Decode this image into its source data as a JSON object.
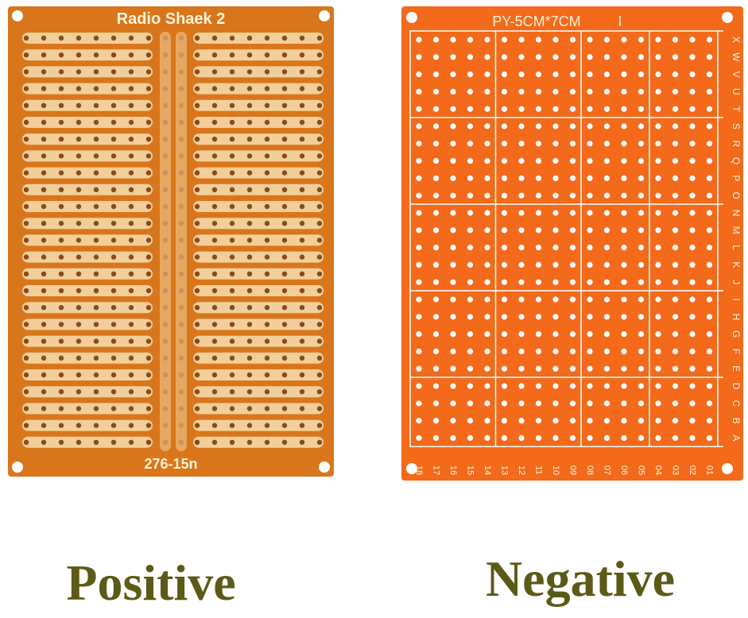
{
  "left_board": {
    "title": "Radio Shaek 2",
    "code": "276-15n"
  },
  "right_board": {
    "title": "PY-5CM*7CM",
    "mark": "I",
    "row_letters": [
      "X",
      "W",
      "V",
      "U",
      "T",
      "S",
      "R",
      "Q",
      "P",
      "O",
      "N",
      "M",
      "L",
      "K",
      "J",
      "I",
      "H",
      "G",
      "F",
      "E",
      "D",
      "C",
      "B",
      "A"
    ],
    "column_numbers": [
      "18",
      "17",
      "16",
      "15",
      "14",
      "13",
      "12",
      "11",
      "10",
      "09",
      "08",
      "07",
      "06",
      "05",
      "04",
      "03",
      "02",
      "01"
    ]
  },
  "captions": {
    "left": "Positive",
    "right": "Negative"
  }
}
